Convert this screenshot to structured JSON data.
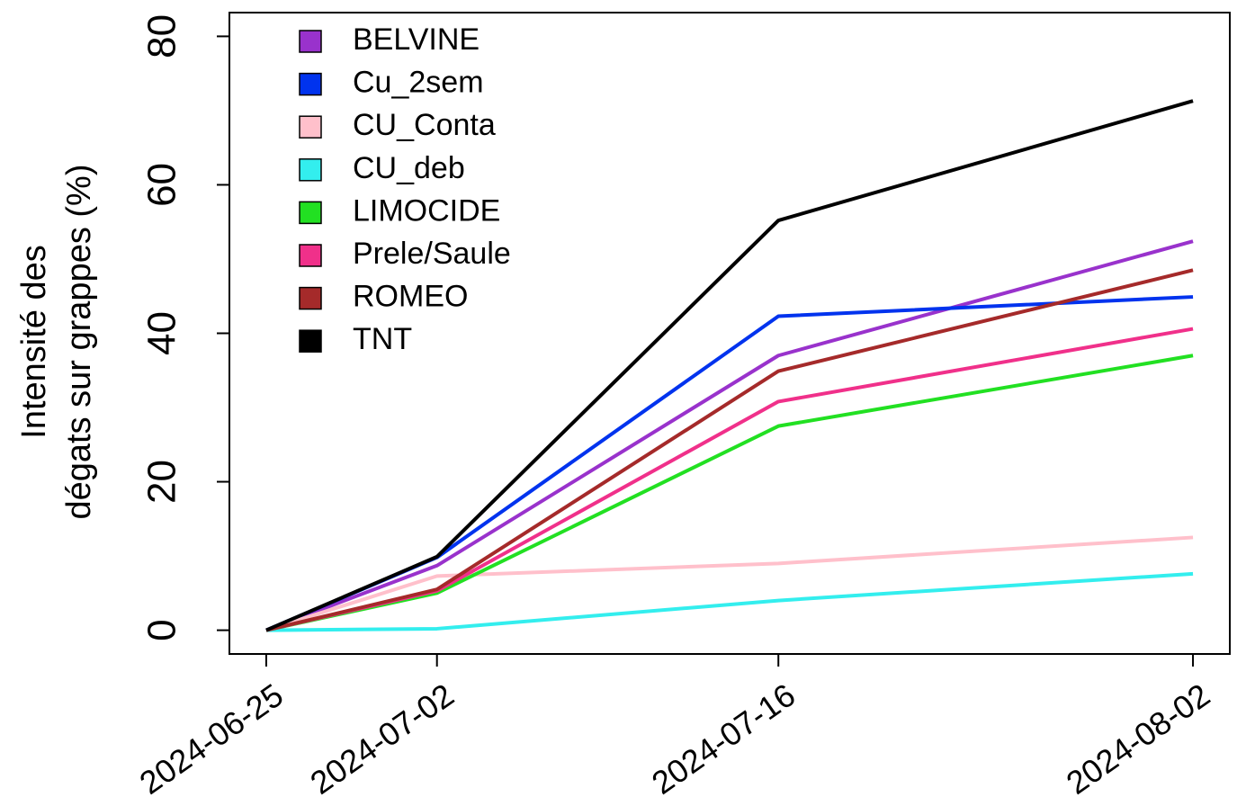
{
  "chart_data": {
    "type": "line",
    "ylabel": [
      "Intensité des",
      "dégats sur grappes (%)"
    ],
    "x": [
      "2024-06-25",
      "2024-07-02",
      "2024-07-16",
      "2024-08-02"
    ],
    "xticks": [
      "2024-06-25",
      "2024-07-02",
      "2024-07-16",
      "2024-08-02"
    ],
    "xlim": [
      "2024-06-23T11:45",
      "2024-08-03T12:15"
    ],
    "ylim": [
      -3.2,
      83.2
    ],
    "yticks": [
      0,
      20,
      40,
      60,
      80
    ],
    "legend": "top-left",
    "series": [
      {
        "name": "BELVINE",
        "color": "#9932CC",
        "values": [
          0,
          8.7,
          37.0,
          52.4
        ]
      },
      {
        "name": "Cu_2sem",
        "color": "#0033EE",
        "values": [
          0,
          9.8,
          42.3,
          44.9
        ]
      },
      {
        "name": "CU_Conta",
        "color": "#FFC0CB",
        "values": [
          0,
          7.3,
          9.0,
          12.5
        ]
      },
      {
        "name": "CU_deb",
        "color": "#33EEEE",
        "values": [
          0,
          0.2,
          4.0,
          7.6
        ]
      },
      {
        "name": "LIMOCIDE",
        "color": "#22E022",
        "values": [
          0,
          5.0,
          27.5,
          37.0
        ]
      },
      {
        "name": "Prele/Saule",
        "color": "#F0308A",
        "values": [
          0,
          5.3,
          30.8,
          40.6
        ]
      },
      {
        "name": "ROMEO",
        "color": "#A52A2A",
        "values": [
          0,
          5.5,
          34.9,
          48.5
        ]
      },
      {
        "name": "TNT",
        "color": "#000000",
        "values": [
          0,
          9.9,
          55.2,
          71.3
        ]
      }
    ]
  }
}
